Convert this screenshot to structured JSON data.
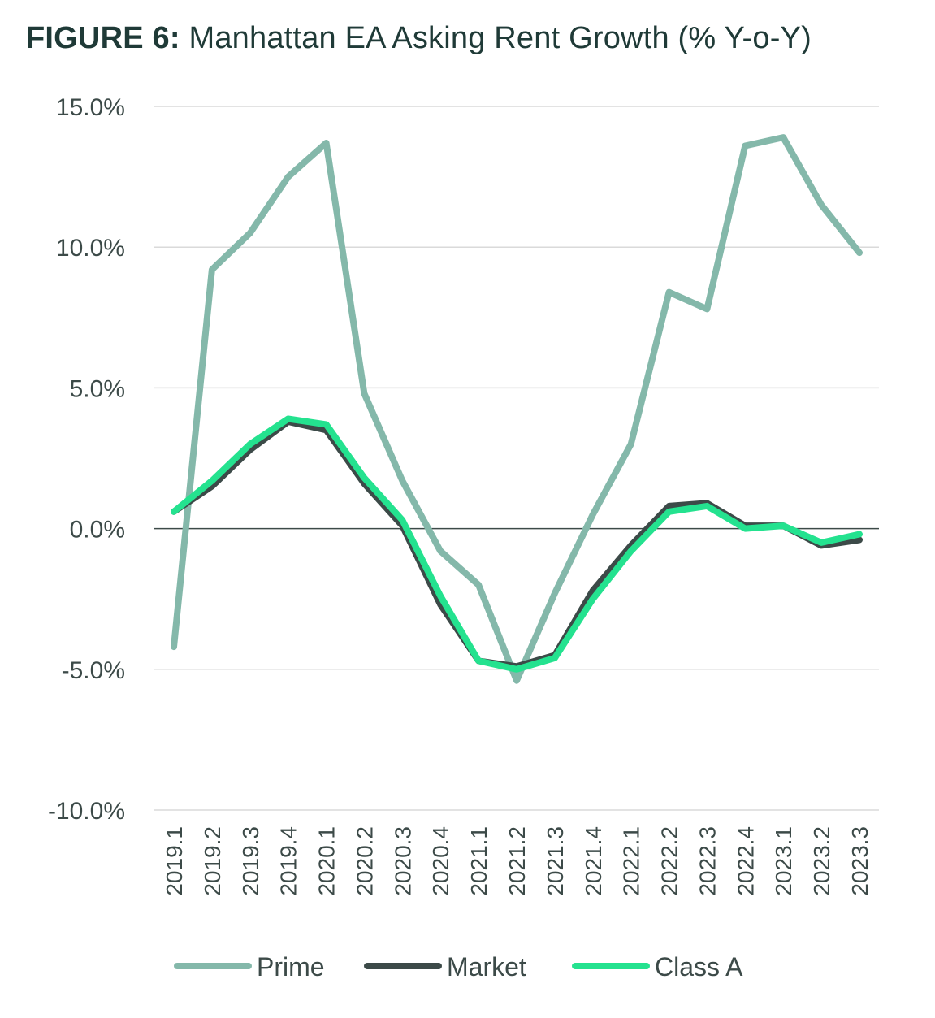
{
  "title": {
    "lead": "FIGURE 6:",
    "rest": "Manhattan EA Asking Rent Growth (% Y-o-Y)"
  },
  "chart_data": {
    "type": "line",
    "title": "FIGURE 6: Manhattan EA Asking Rent Growth (% Y-o-Y)",
    "xlabel": "",
    "ylabel": "",
    "ylim": [
      -10,
      15
    ],
    "yticks": [
      15,
      10,
      5,
      0,
      -5,
      -10
    ],
    "ytick_labels": [
      "15.0%",
      "10.0%",
      "5.0%",
      "0.0%",
      "-5.0%",
      "-10.0%"
    ],
    "grid": true,
    "legend_position": "bottom",
    "categories": [
      "2019.1",
      "2019.2",
      "2019.3",
      "2019.4",
      "2020.1",
      "2020.2",
      "2020.3",
      "2020.4",
      "2021.1",
      "2021.2",
      "2021.3",
      "2021.4",
      "2022.1",
      "2022.2",
      "2022.3",
      "2022.4",
      "2023.1",
      "2023.2",
      "2023.3"
    ],
    "series": [
      {
        "name": "Prime",
        "color": "#84b8aa",
        "values": [
          -4.2,
          9.2,
          10.5,
          12.5,
          13.7,
          4.8,
          1.7,
          -0.8,
          -2.0,
          -5.4,
          -2.3,
          0.5,
          3.0,
          8.4,
          7.8,
          13.6,
          13.9,
          11.5,
          9.8
        ]
      },
      {
        "name": "Market",
        "color": "#3c4a48",
        "values": [
          0.6,
          1.5,
          2.8,
          3.8,
          3.5,
          1.6,
          0.1,
          -2.7,
          -4.7,
          -4.9,
          -4.5,
          -2.2,
          -0.6,
          0.8,
          0.9,
          0.1,
          0.1,
          -0.6,
          -0.4
        ]
      },
      {
        "name": "Class A",
        "color": "#24e28f",
        "values": [
          0.6,
          1.7,
          3.0,
          3.9,
          3.7,
          1.8,
          0.3,
          -2.4,
          -4.7,
          -5.0,
          -4.6,
          -2.5,
          -0.8,
          0.6,
          0.8,
          0.0,
          0.1,
          -0.5,
          -0.2
        ]
      }
    ]
  }
}
